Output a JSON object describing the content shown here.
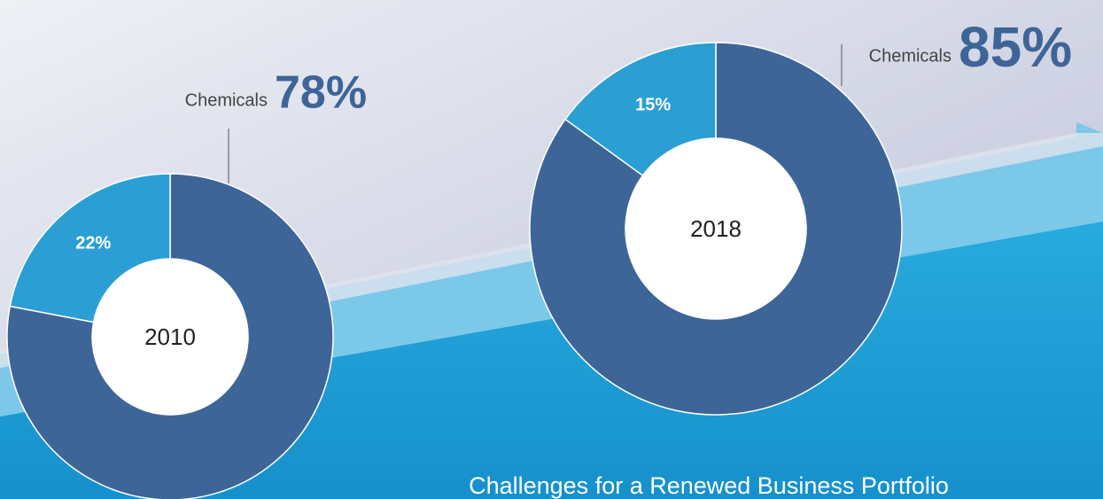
{
  "chart_data": [
    {
      "type": "donut",
      "center_label": "2010",
      "categories": [
        "Chemicals",
        null
      ],
      "values": [
        78,
        22
      ],
      "value_labels": [
        "78%",
        "22%"
      ],
      "colors": [
        "#3d6598",
        "#2b9fd4"
      ]
    },
    {
      "type": "donut",
      "center_label": "2018",
      "categories": [
        "Chemicals",
        null
      ],
      "values": [
        85,
        15
      ],
      "value_labels": [
        "85%",
        "15%"
      ],
      "colors": [
        "#3d6598",
        "#2b9fd4"
      ]
    }
  ],
  "caption": "Challenges for a Renewed Business Portfolio"
}
